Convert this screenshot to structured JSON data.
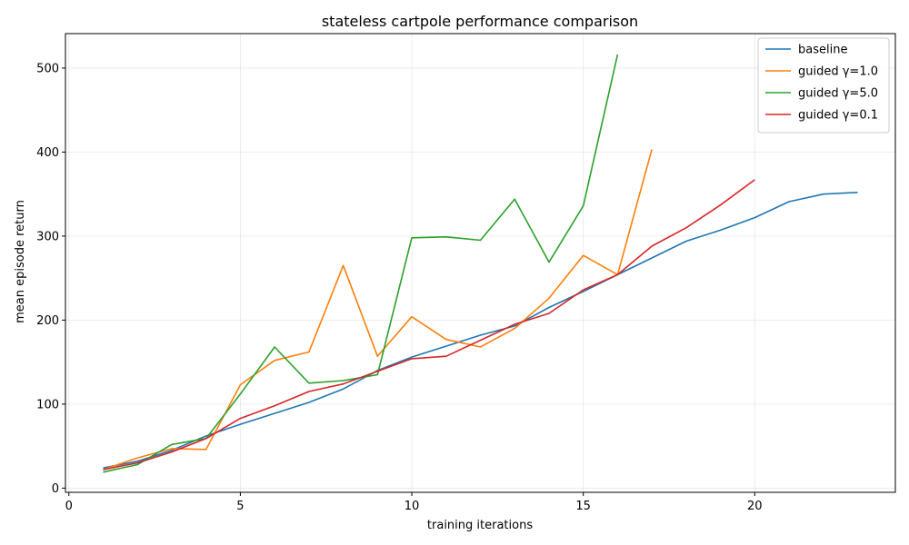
{
  "chart_data": {
    "type": "line",
    "title": "stateless cartpole performance comparison",
    "xlabel": "training iterations",
    "ylabel": "mean episode return",
    "xlim": [
      -0.1,
      24.1
    ],
    "ylim": [
      -5,
      541
    ],
    "xticks": [
      0,
      5,
      10,
      15,
      20
    ],
    "yticks": [
      0,
      100,
      200,
      300,
      400,
      500
    ],
    "grid": true,
    "legend_position": "top-right",
    "series": [
      {
        "name": "baseline",
        "color": "#1f77b4",
        "x": [
          1,
          2,
          3,
          4,
          5,
          6,
          7,
          8,
          9,
          10,
          11,
          12,
          13,
          14,
          15,
          16,
          17,
          18,
          19,
          20,
          21,
          22,
          23
        ],
        "values": [
          24,
          32,
          45,
          62,
          76,
          89,
          102,
          118,
          140,
          156,
          169,
          182,
          193,
          215,
          234,
          254,
          274,
          294,
          307,
          322,
          341,
          350,
          352
        ]
      },
      {
        "name": "guided γ=1.0",
        "color": "#ff7f0e",
        "x": [
          1,
          2,
          3,
          4,
          5,
          6,
          7,
          8,
          9,
          10,
          11,
          12,
          13,
          14,
          15,
          16,
          17
        ],
        "values": [
          22,
          36,
          47,
          46,
          123,
          152,
          162,
          265,
          157,
          204,
          177,
          168,
          190,
          226,
          277,
          254,
          403
        ]
      },
      {
        "name": "guided γ=5.0",
        "color": "#2ca02c",
        "x": [
          1,
          2,
          3,
          4,
          5,
          6,
          7,
          8,
          9,
          10,
          11,
          12,
          13,
          14,
          15,
          16
        ],
        "values": [
          19,
          28,
          52,
          59,
          112,
          168,
          125,
          128,
          135,
          298,
          299,
          295,
          344,
          269,
          336,
          516
        ]
      },
      {
        "name": "guided γ=0.1",
        "color": "#d62728",
        "x": [
          1,
          2,
          3,
          4,
          5,
          6,
          7,
          8,
          9,
          10,
          11,
          12,
          13,
          14,
          15,
          16,
          17,
          18,
          19,
          20
        ],
        "values": [
          22,
          30,
          43,
          59,
          83,
          98,
          115,
          124,
          139,
          154,
          157,
          176,
          195,
          208,
          236,
          254,
          288,
          310,
          337,
          367
        ]
      }
    ]
  }
}
